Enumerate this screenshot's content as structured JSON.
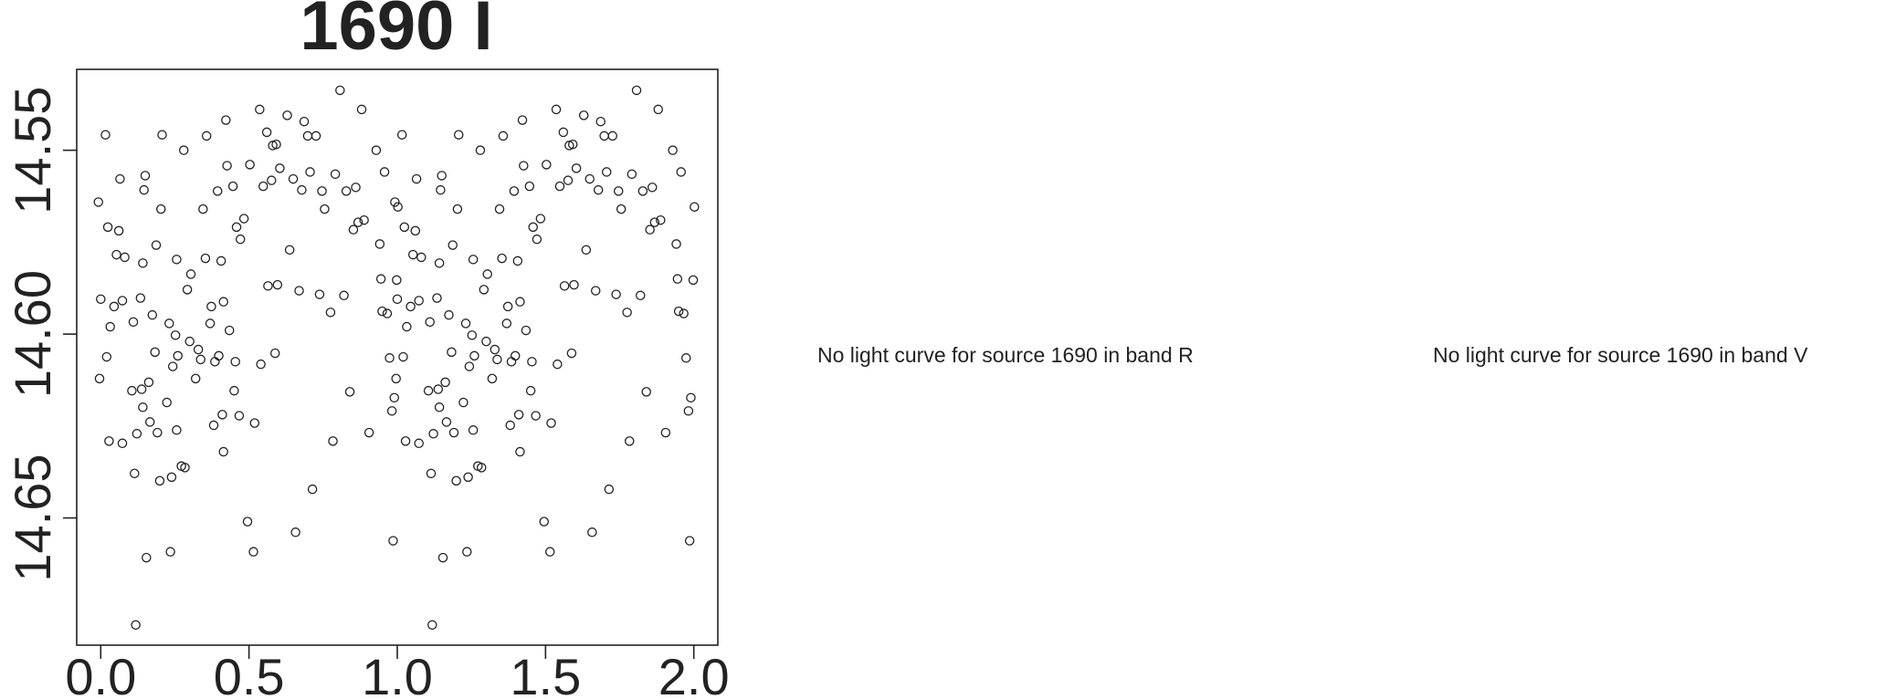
{
  "chart_data": {
    "type": "scatter",
    "title": "1690 I",
    "x": [
      -0.008,
      -0.004,
      0,
      0.016,
      0.02,
      0.024,
      0.032,
      0.028,
      0.045,
      0.053,
      0.061,
      0.065,
      0.073,
      0.073,
      0.081,
      0.105,
      0.11,
      0.114,
      0.118,
      0.122,
      0.134,
      0.138,
      0.142,
      0.142,
      0.146,
      0.15,
      0.154,
      0.162,
      0.166,
      0.174,
      0.183,
      0.187,
      0.191,
      0.199,
      0.203,
      0.207,
      0.223,
      0.231,
      0.235,
      0.239,
      0.243,
      0.252,
      0.256,
      0.256,
      0.26,
      0.272,
      0.28,
      0.284,
      0.292,
      0.3,
      0.304,
      0.32,
      0.329,
      0.337,
      0.345,
      0.353,
      0.357,
      0.369,
      0.373,
      0.381,
      0.385,
      0.394,
      0.398,
      0.406,
      0.414,
      0.41,
      0.414,
      0.422,
      0.426,
      0.434,
      0.446,
      0.45,
      0.454,
      0.458,
      0.467,
      0.471,
      0.483,
      0.495,
      0.503,
      0.515,
      0.519,
      0.536,
      0.54,
      0.548,
      0.56,
      0.564,
      0.576,
      0.58,
      0.588,
      0.592,
      0.596,
      0.604,
      0.629,
      0.637,
      0.649,
      0.657,
      0.669,
      0.678,
      0.686,
      0.698,
      0.706,
      0.714,
      0.726,
      0.738,
      0.746,
      0.755,
      0.775,
      0.783,
      0.791,
      0.807,
      0.82,
      0.828,
      0.84,
      0.852,
      0.86,
      0.868,
      0.88,
      0.888,
      0.905,
      0.929,
      0.941,
      0.945,
      0.949,
      0.957,
      0.966,
      0.974,
      0.982,
      0.986,
      0.99,
      0.998,
      1.002,
      0.992,
      0.996,
      1,
      1.016,
      1.02,
      1.024,
      1.032,
      1.028,
      1.045,
      1.053,
      1.061,
      1.065,
      1.073,
      1.073,
      1.081,
      1.105,
      1.11,
      1.114,
      1.118,
      1.122,
      1.134,
      1.138,
      1.142,
      1.142,
      1.146,
      1.15,
      1.154,
      1.162,
      1.166,
      1.174,
      1.183,
      1.187,
      1.191,
      1.199,
      1.203,
      1.207,
      1.223,
      1.231,
      1.235,
      1.239,
      1.243,
      1.252,
      1.256,
      1.256,
      1.26,
      1.272,
      1.28,
      1.284,
      1.292,
      1.3,
      1.304,
      1.32,
      1.329,
      1.337,
      1.345,
      1.353,
      1.357,
      1.369,
      1.373,
      1.381,
      1.385,
      1.394,
      1.398,
      1.406,
      1.414,
      1.41,
      1.414,
      1.422,
      1.426,
      1.434,
      1.446,
      1.45,
      1.454,
      1.458,
      1.467,
      1.471,
      1.483,
      1.495,
      1.503,
      1.515,
      1.519,
      1.536,
      1.54,
      1.548,
      1.56,
      1.564,
      1.576,
      1.58,
      1.588,
      1.592,
      1.596,
      1.604,
      1.629,
      1.637,
      1.649,
      1.657,
      1.669,
      1.678,
      1.686,
      1.698,
      1.706,
      1.714,
      1.726,
      1.738,
      1.746,
      1.755,
      1.775,
      1.783,
      1.791,
      1.807,
      1.82,
      1.828,
      1.84,
      1.852,
      1.86,
      1.868,
      1.88,
      1.888,
      1.905,
      1.929,
      1.941,
      1.945,
      1.949,
      1.957,
      1.966,
      1.974,
      1.982,
      1.986,
      1.99,
      1.998,
      2.002
    ],
    "y": [
      14.5641,
      14.6121,
      14.5905,
      14.5458,
      14.6062,
      14.5709,
      14.598,
      14.6291,
      14.5925,
      14.5784,
      14.5719,
      14.5578,
      14.6297,
      14.5909,
      14.5791,
      14.6154,
      14.5967,
      14.6379,
      14.6791,
      14.6271,
      14.5902,
      14.615,
      14.5807,
      14.6199,
      14.5608,
      14.5569,
      14.6608,
      14.6131,
      14.6239,
      14.5948,
      14.6049,
      14.5758,
      14.6268,
      14.6399,
      14.566,
      14.5458,
      14.6186,
      14.5971,
      14.6592,
      14.6389,
      14.6088,
      14.6003,
      14.6261,
      14.5797,
      14.6059,
      14.6359,
      14.55,
      14.6363,
      14.5879,
      14.602,
      14.5837,
      14.6121,
      14.6042,
      14.6069,
      14.566,
      14.5794,
      14.5461,
      14.5971,
      14.5925,
      14.6248,
      14.6075,
      14.5611,
      14.6059,
      14.5801,
      14.632,
      14.6219,
      14.5912,
      14.5418,
      14.5542,
      14.599,
      14.5598,
      14.6154,
      14.6075,
      14.5709,
      14.6222,
      14.5742,
      14.5686,
      14.651,
      14.5539,
      14.6592,
      14.6242,
      14.5389,
      14.6082,
      14.5598,
      14.5451,
      14.5869,
      14.5582,
      14.5487,
      14.6052,
      14.5484,
      14.5866,
      14.5549,
      14.5405,
      14.5771,
      14.5578,
      14.6539,
      14.5882,
      14.5608,
      14.5422,
      14.5461,
      14.5559,
      14.6422,
      14.5461,
      14.5892,
      14.5611,
      14.566,
      14.5941,
      14.6291,
      14.5565,
      14.5337,
      14.5895,
      14.5611,
      14.6157,
      14.5716,
      14.5601,
      14.5696,
      14.5389,
      14.569,
      14.6268,
      14.55,
      14.5755,
      14.585,
      14.5938,
      14.5559,
      14.5944,
      14.6065,
      14.6209,
      14.6562,
      14.6173,
      14.5853,
      14.5654,
      14.5641,
      14.6121,
      14.5905,
      14.5458,
      14.6062,
      14.5709,
      14.598,
      14.6291,
      14.5925,
      14.5784,
      14.5719,
      14.5578,
      14.6297,
      14.5909,
      14.5791,
      14.6154,
      14.5967,
      14.6379,
      14.6791,
      14.6271,
      14.5902,
      14.615,
      14.5807,
      14.6199,
      14.5608,
      14.5569,
      14.6608,
      14.6131,
      14.6239,
      14.5948,
      14.6049,
      14.5758,
      14.6268,
      14.6399,
      14.566,
      14.5458,
      14.6186,
      14.5971,
      14.6592,
      14.6389,
      14.6088,
      14.6003,
      14.6261,
      14.5797,
      14.6059,
      14.6359,
      14.55,
      14.6363,
      14.5879,
      14.602,
      14.5837,
      14.6121,
      14.6042,
      14.6069,
      14.566,
      14.5794,
      14.5461,
      14.5971,
      14.5925,
      14.6248,
      14.6075,
      14.5611,
      14.6059,
      14.5801,
      14.632,
      14.6219,
      14.5912,
      14.5418,
      14.5542,
      14.599,
      14.5598,
      14.6154,
      14.6075,
      14.5709,
      14.6222,
      14.5742,
      14.5686,
      14.651,
      14.5539,
      14.6592,
      14.6242,
      14.5389,
      14.6082,
      14.5598,
      14.5451,
      14.5869,
      14.5582,
      14.5487,
      14.6052,
      14.5484,
      14.5866,
      14.5549,
      14.5405,
      14.5771,
      14.5578,
      14.6539,
      14.5882,
      14.5608,
      14.5422,
      14.5461,
      14.5559,
      14.6422,
      14.5461,
      14.5892,
      14.5611,
      14.566,
      14.5941,
      14.6291,
      14.5565,
      14.5337,
      14.5895,
      14.5611,
      14.6157,
      14.5716,
      14.5601,
      14.5696,
      14.5389,
      14.569,
      14.6268,
      14.55,
      14.5755,
      14.585,
      14.5938,
      14.5559,
      14.5944,
      14.6065,
      14.6209,
      14.6562,
      14.6173,
      14.5853,
      14.5654
    ],
    "color": "#222222",
    "xlim": [
      -0.081,
      2.081
    ],
    "xticks": [
      {
        "value": 0,
        "label": "0.0"
      },
      {
        "value": 0.5,
        "label": "0.5"
      },
      {
        "value": 1,
        "label": "1.0"
      },
      {
        "value": 1.5,
        "label": "1.5"
      },
      {
        "value": 2,
        "label": "2.0"
      }
    ],
    "ylim": [
      14.6846,
      14.528
    ],
    "yticks": [
      14.55,
      {
        "value": 14.6,
        "label": "14.60"
      },
      14.65
    ],
    "grid": false
  },
  "messages": [
    "No light curve for source 1690 in band R",
    "No light curve for source 1690 in band V"
  ]
}
